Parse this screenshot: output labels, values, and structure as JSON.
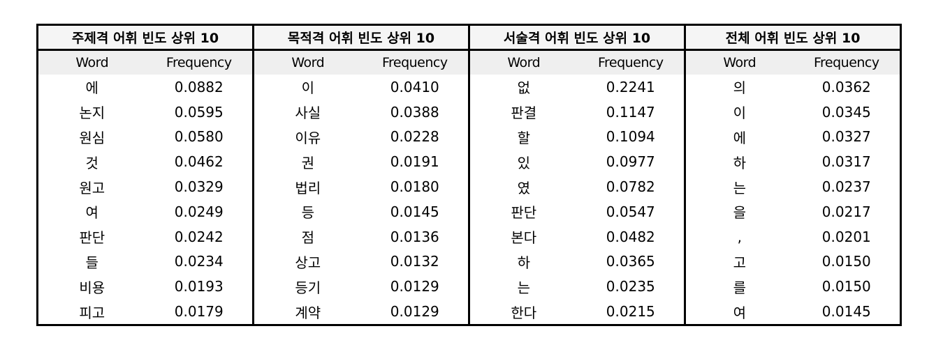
{
  "groups": [
    {
      "title": "주제격 어휘 빈도 상위 10",
      "word_label": "Word",
      "freq_label": "Frequency",
      "rows": [
        {
          "word": "에",
          "freq": "0.0882"
        },
        {
          "word": "논지",
          "freq": "0.0595"
        },
        {
          "word": "원심",
          "freq": "0.0580"
        },
        {
          "word": "것",
          "freq": "0.0462"
        },
        {
          "word": "원고",
          "freq": "0.0329"
        },
        {
          "word": "여",
          "freq": "0.0249"
        },
        {
          "word": "판단",
          "freq": "0.0242"
        },
        {
          "word": "들",
          "freq": "0.0234"
        },
        {
          "word": "비용",
          "freq": "0.0193"
        },
        {
          "word": "피고",
          "freq": "0.0179"
        }
      ]
    },
    {
      "title": "목적격 어휘 빈도 상위 10",
      "word_label": "Word",
      "freq_label": "Frequency",
      "rows": [
        {
          "word": "이",
          "freq": "0.0410"
        },
        {
          "word": "사실",
          "freq": "0.0388"
        },
        {
          "word": "이유",
          "freq": "0.0228"
        },
        {
          "word": "권",
          "freq": "0.0191"
        },
        {
          "word": "법리",
          "freq": "0.0180"
        },
        {
          "word": "등",
          "freq": "0.0145"
        },
        {
          "word": "점",
          "freq": "0.0136"
        },
        {
          "word": "상고",
          "freq": "0.0132"
        },
        {
          "word": "등기",
          "freq": "0.0129"
        },
        {
          "word": "계약",
          "freq": "0.0129"
        }
      ]
    },
    {
      "title": "서술격 어휘 빈도 상위 10",
      "word_label": "Word",
      "freq_label": "Frequency",
      "rows": [
        {
          "word": "없",
          "freq": "0.2241"
        },
        {
          "word": "판결",
          "freq": "0.1147"
        },
        {
          "word": "할",
          "freq": "0.1094"
        },
        {
          "word": "있",
          "freq": "0.0977"
        },
        {
          "word": "였",
          "freq": "0.0782"
        },
        {
          "word": "판단",
          "freq": "0.0547"
        },
        {
          "word": "본다",
          "freq": "0.0482"
        },
        {
          "word": "하",
          "freq": "0.0365"
        },
        {
          "word": "는",
          "freq": "0.0235"
        },
        {
          "word": "한다",
          "freq": "0.0215"
        }
      ]
    },
    {
      "title": "전체 어휘 빈도 상위 10",
      "word_label": "Word",
      "freq_label": "Frequency",
      "rows": [
        {
          "word": "의",
          "freq": "0.0362"
        },
        {
          "word": "이",
          "freq": "0.0345"
        },
        {
          "word": "에",
          "freq": "0.0327"
        },
        {
          "word": "하",
          "freq": "0.0317"
        },
        {
          "word": "는",
          "freq": "0.0237"
        },
        {
          "word": "을",
          "freq": "0.0217"
        },
        {
          "word": ",",
          "freq": "0.0201"
        },
        {
          "word": "고",
          "freq": "0.0150"
        },
        {
          "word": "를",
          "freq": "0.0150"
        },
        {
          "word": "여",
          "freq": "0.0145"
        }
      ]
    }
  ]
}
